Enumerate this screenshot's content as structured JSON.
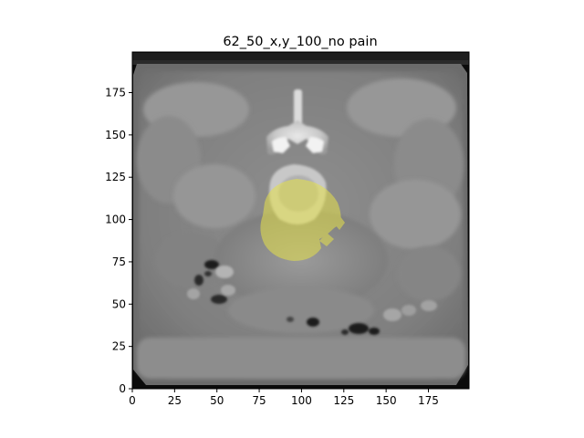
{
  "figure": {
    "title": "62_50_x,y_100_no pain",
    "background": "#ffffff"
  },
  "image": {
    "description_kind": "axial CT slice with overlay",
    "overlay_color": "#e8e26a",
    "grayscale_base": true
  },
  "chart_data": {
    "type": "heatmap",
    "title": "62_50_x,y_100_no pain",
    "xlabel": "",
    "ylabel": "",
    "xlim": [
      0,
      199
    ],
    "ylim": [
      0,
      199
    ],
    "x_ticks": [
      0,
      25,
      50,
      75,
      100,
      125,
      150,
      175
    ],
    "y_ticks": [
      0,
      25,
      50,
      75,
      100,
      125,
      150,
      175
    ],
    "x_tick_labels": [
      "0",
      "25",
      "50",
      "75",
      "100",
      "125",
      "150",
      "175"
    ],
    "y_tick_labels": [
      "0",
      "25",
      "50",
      "75",
      "100",
      "125",
      "150",
      "175"
    ],
    "grid": false,
    "legend": "none"
  }
}
